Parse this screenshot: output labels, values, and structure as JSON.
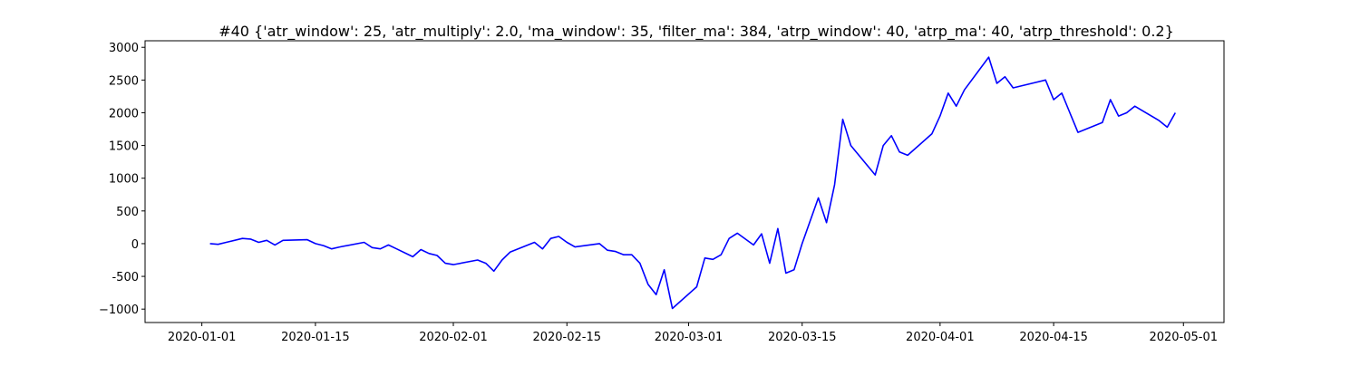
{
  "chart_data": {
    "type": "line",
    "title": "#40 {'atr_window': 25, 'atr_multiply': 2.0, 'ma_window': 35, 'filter_ma': 384, 'atrp_window': 40, 'atrp_ma': 40, 'atrp_threshold': 0.2}",
    "x": [
      "2020-01-02",
      "2020-01-03",
      "2020-01-04",
      "2020-01-06",
      "2020-01-07",
      "2020-01-08",
      "2020-01-09",
      "2020-01-10",
      "2020-01-11",
      "2020-01-14",
      "2020-01-15",
      "2020-01-16",
      "2020-01-17",
      "2020-01-18",
      "2020-01-21",
      "2020-01-22",
      "2020-01-23",
      "2020-01-24",
      "2020-01-25",
      "2020-01-27",
      "2020-01-28",
      "2020-01-29",
      "2020-01-30",
      "2020-01-31",
      "2020-02-01",
      "2020-02-04",
      "2020-02-05",
      "2020-02-06",
      "2020-02-07",
      "2020-02-08",
      "2020-02-11",
      "2020-02-12",
      "2020-02-13",
      "2020-02-14",
      "2020-02-15",
      "2020-02-16",
      "2020-02-19",
      "2020-02-20",
      "2020-02-21",
      "2020-02-22",
      "2020-02-23",
      "2020-02-24",
      "2020-02-25",
      "2020-02-26",
      "2020-02-27",
      "2020-02-28",
      "2020-03-02",
      "2020-03-03",
      "2020-03-04",
      "2020-03-05",
      "2020-03-06",
      "2020-03-07",
      "2020-03-09",
      "2020-03-10",
      "2020-03-11",
      "2020-03-12",
      "2020-03-13",
      "2020-03-14",
      "2020-03-15",
      "2020-03-17",
      "2020-03-18",
      "2020-03-19",
      "2020-03-20",
      "2020-03-21",
      "2020-03-24",
      "2020-03-25",
      "2020-03-26",
      "2020-03-27",
      "2020-03-28",
      "2020-03-31",
      "2020-04-01",
      "2020-04-02",
      "2020-04-03",
      "2020-04-04",
      "2020-04-07",
      "2020-04-08",
      "2020-04-09",
      "2020-04-10",
      "2020-04-14",
      "2020-04-15",
      "2020-04-16",
      "2020-04-17",
      "2020-04-18",
      "2020-04-21",
      "2020-04-22",
      "2020-04-23",
      "2020-04-24",
      "2020-04-25",
      "2020-04-28",
      "2020-04-29",
      "2020-04-30"
    ],
    "series": [
      {
        "color": "#0000ff",
        "values": [
          0,
          -10,
          20,
          80,
          70,
          20,
          50,
          -20,
          50,
          60,
          0,
          -30,
          -80,
          -50,
          20,
          -60,
          -80,
          -20,
          -80,
          -200,
          -90,
          -150,
          -180,
          -300,
          -320,
          -250,
          -300,
          -420,
          -250,
          -130,
          20,
          -80,
          80,
          110,
          20,
          -50,
          0,
          -100,
          -120,
          -170,
          -170,
          -300,
          -620,
          -780,
          -400,
          -990,
          -660,
          -220,
          -240,
          -170,
          80,
          160,
          -20,
          150,
          -300,
          230,
          -450,
          -400,
          0,
          700,
          320,
          900,
          1900,
          1500,
          1050,
          1500,
          1650,
          1400,
          1350,
          1680,
          1950,
          2300,
          2100,
          2350,
          2850,
          2450,
          2550,
          2380,
          2500,
          2200,
          2300,
          2000,
          1700,
          1850,
          2200,
          1950,
          2000,
          2100,
          1880,
          1780,
          2000
        ]
      }
    ],
    "xlim": [
      "2019-12-25",
      "2020-05-06"
    ],
    "xticks": [
      "2020-01-01",
      "2020-01-15",
      "2020-02-01",
      "2020-02-15",
      "2020-03-01",
      "2020-03-15",
      "2020-04-01",
      "2020-04-15",
      "2020-05-01"
    ],
    "ylim": [
      -1205,
      3100
    ],
    "yticks": [
      {
        "value": -1000,
        "label": "−1000"
      },
      -500,
      0,
      500,
      1000,
      1500,
      2000,
      2500,
      3000
    ]
  }
}
